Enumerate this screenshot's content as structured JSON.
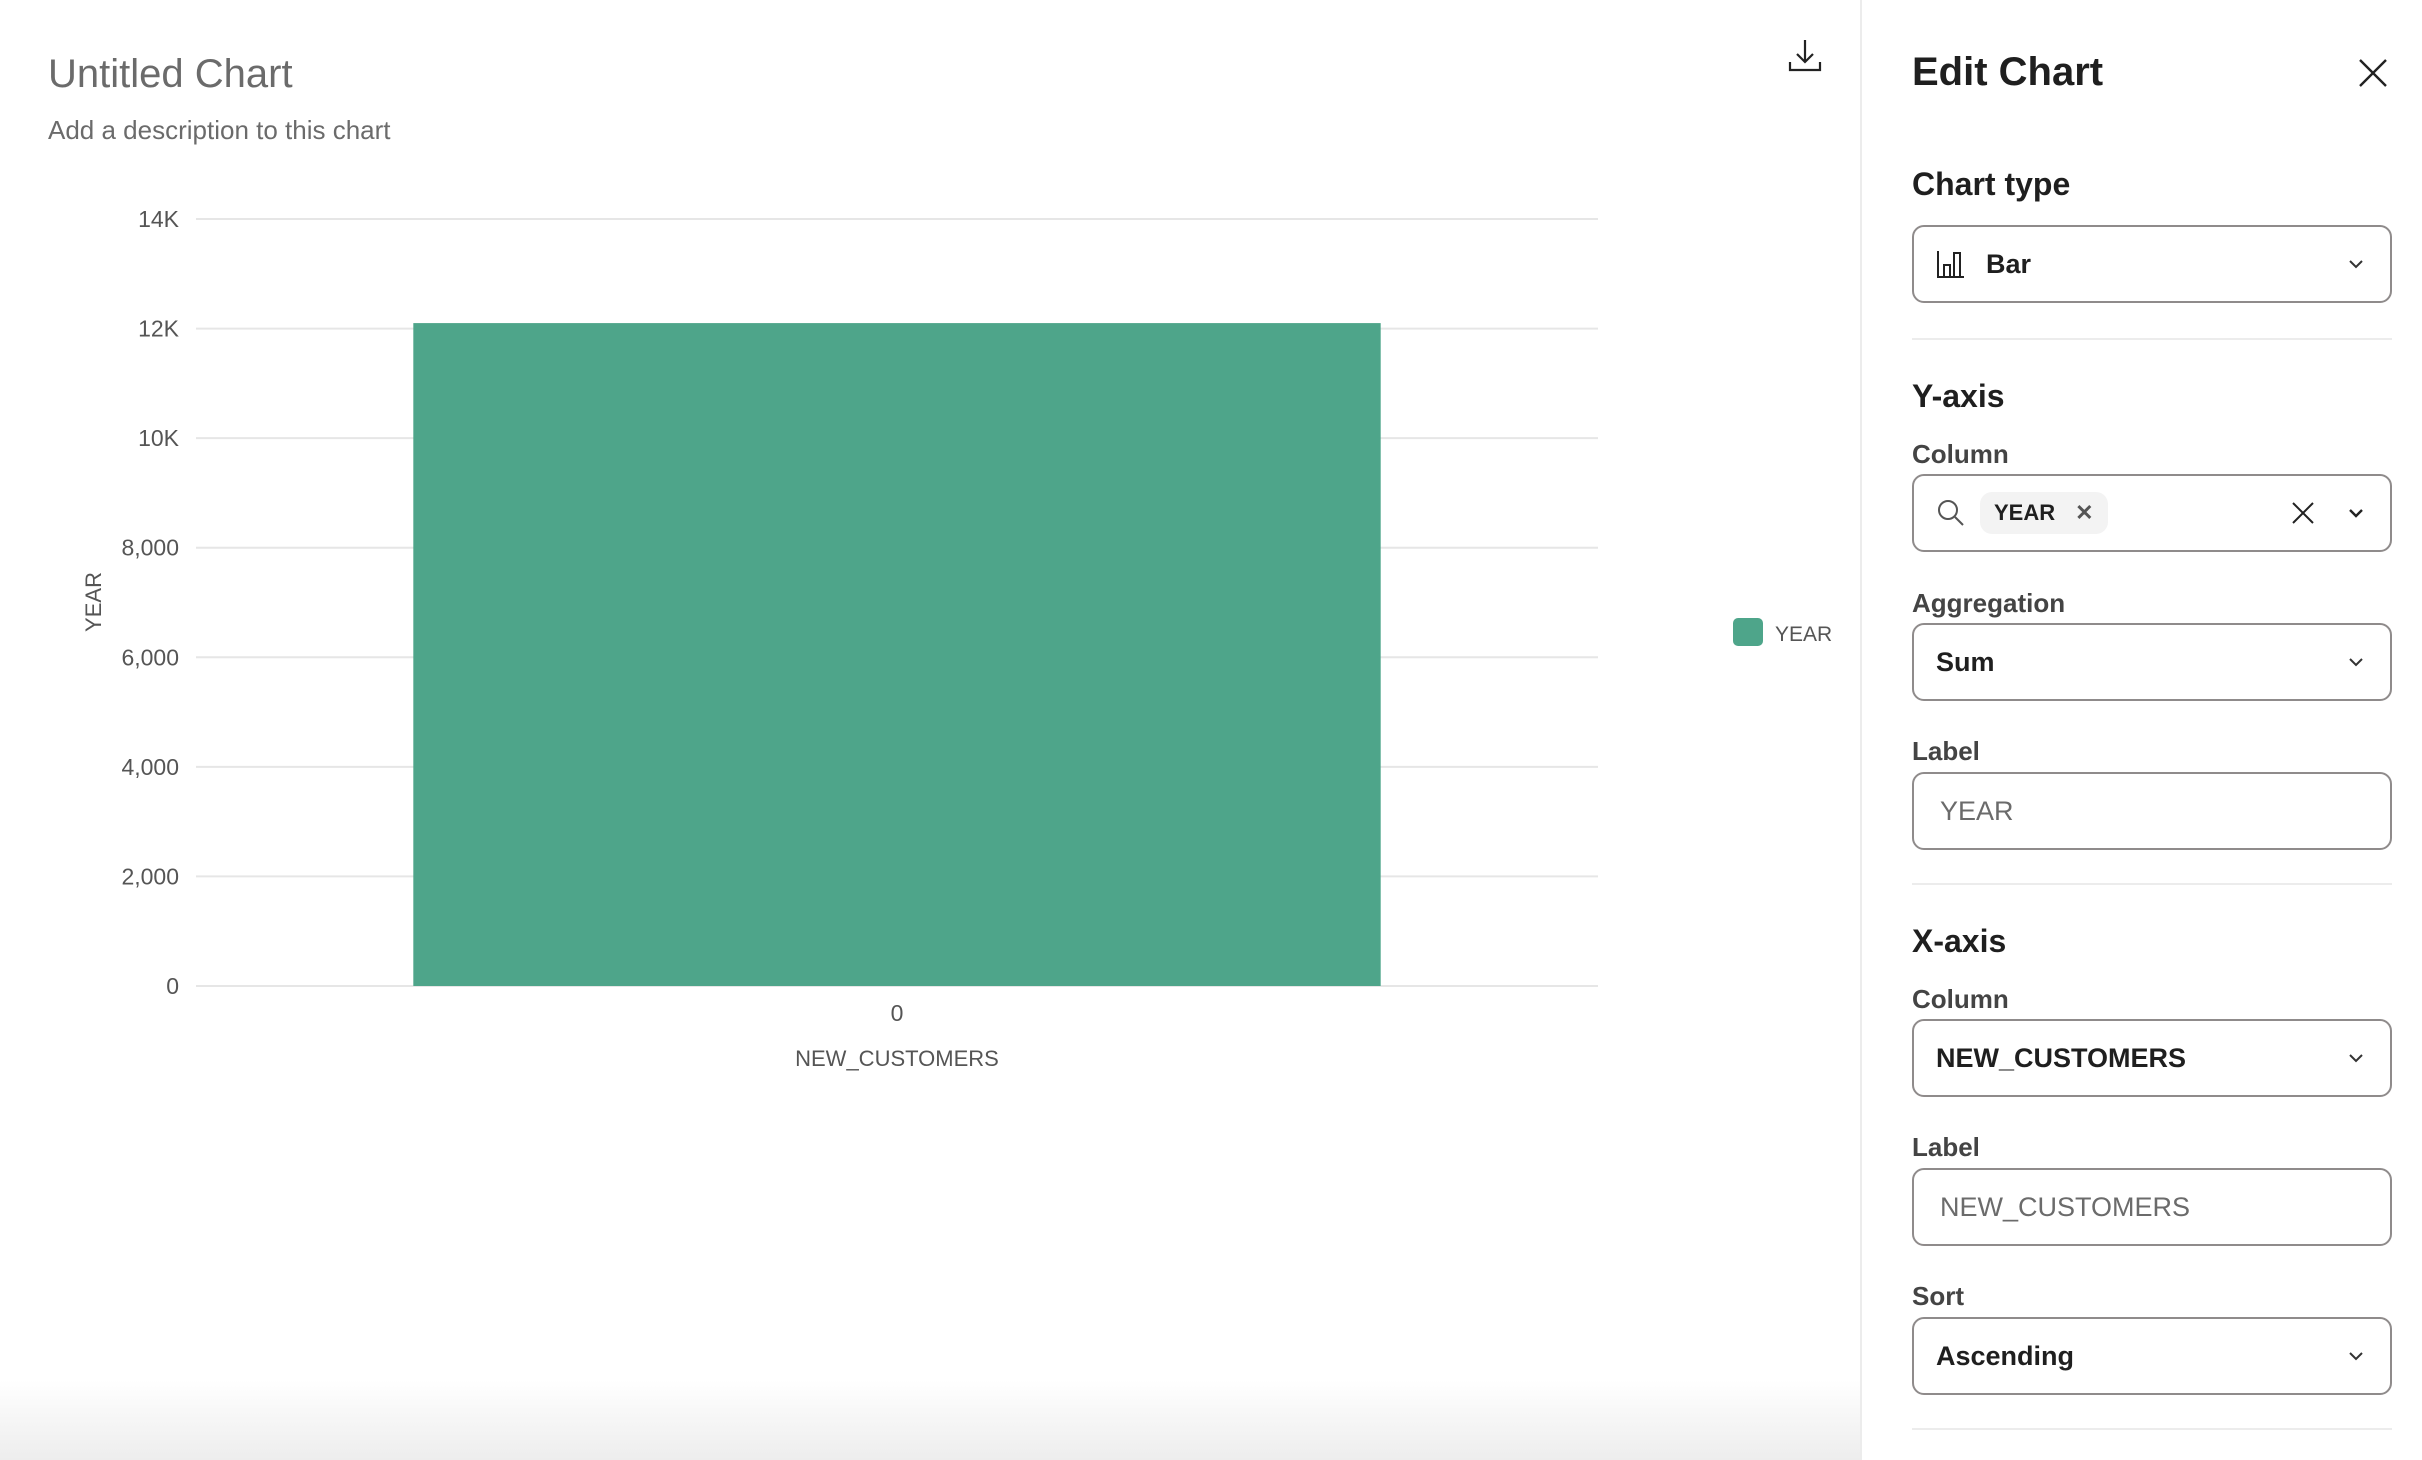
{
  "chart_header": {
    "title": "Untitled Chart",
    "description": "Add a description to this chart",
    "download_icon": "download-icon"
  },
  "chart_data": {
    "type": "bar",
    "categories": [
      "0"
    ],
    "series": [
      {
        "name": "YEAR",
        "values": [
          12100
        ],
        "color": "#4ea58a"
      }
    ],
    "xlabel": "NEW_CUSTOMERS",
    "ylabel": "YEAR",
    "ylim": [
      0,
      14000
    ],
    "yticks": [
      "0",
      "2,000",
      "4,000",
      "6,000",
      "8,000",
      "10K",
      "12K",
      "14K"
    ],
    "grid": true,
    "legend": "right"
  },
  "panel": {
    "title": "Edit Chart",
    "chart_type": {
      "heading": "Chart type",
      "value": "Bar",
      "icon": "bar-chart-icon"
    },
    "y_axis": {
      "heading": "Y-axis",
      "column_label": "Column",
      "column_chip": "YEAR",
      "aggregation_label": "Aggregation",
      "aggregation": "Sum",
      "label_label": "Label",
      "label_placeholder": "YEAR"
    },
    "x_axis": {
      "heading": "X-axis",
      "column_label": "Column",
      "column": "NEW_CUSTOMERS",
      "label_label": "Label",
      "label_placeholder": "NEW_CUSTOMERS",
      "sort_label": "Sort",
      "sort": "Ascending"
    }
  }
}
